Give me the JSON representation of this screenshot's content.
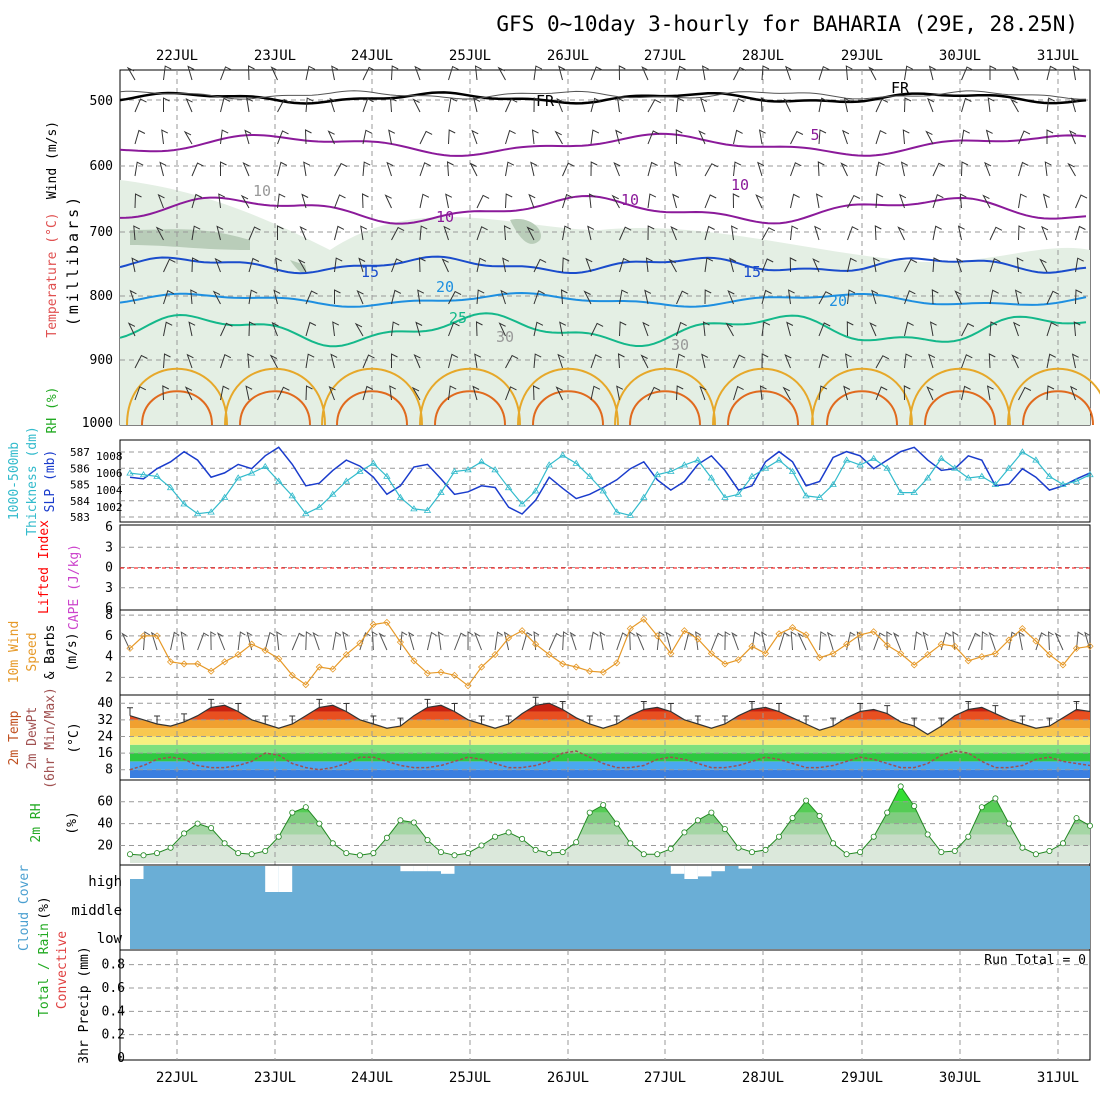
{
  "title": "GFS 0~10day 3-hourly for BAHARIA (29E, 28.25N)",
  "colors": {
    "grid": "#999999",
    "frame": "#000000",
    "slp": "#1a3ccc",
    "thickness": "#33bbcc",
    "lifted_index": "#ff0000",
    "cape": "#cc44cc",
    "wind": "#e69928",
    "rh_green": "#22aa22",
    "cloud_blue": "#6aaed6",
    "temp_c5": "#8b1a9a",
    "temp_c15": "#1a4ccc",
    "temp_c20": "#1e8fe0",
    "temp_c25": "#14b88a",
    "temp_warm1": "#e6a82a",
    "temp_warm2": "#e06a1e",
    "fr_line": "#000000"
  },
  "dates": [
    "22JUL",
    "23JUL",
    "24JUL",
    "25JUL",
    "26JUL",
    "27JUL",
    "28JUL",
    "29JUL",
    "30JUL",
    "31JUL"
  ],
  "panels": {
    "upper": {
      "ylabel_wind": "Wind (m/s)",
      "ylabel_temp": "Temperature (°C)",
      "ylabel_rh": "RH (%)",
      "ylabel_p": "(millibars)",
      "ticks": [
        "500",
        "600",
        "700",
        "800",
        "900",
        "1000"
      ],
      "contour_labels": [
        "5",
        "10",
        "10",
        "10",
        "15",
        "15",
        "20",
        "20",
        "25",
        "30",
        "30",
        "FR",
        "FR",
        "10"
      ]
    },
    "slp": {
      "ylabel_a": "1000-500mb",
      "ylabel_b": "Thickness (dm)",
      "ylabel_c": "SLP (mb)",
      "left_ticks": [
        "587",
        "586",
        "585",
        "584",
        "583"
      ],
      "right_ticks": [
        "1008",
        "1006",
        "1004",
        "1002"
      ]
    },
    "li": {
      "ylabel_a": "Lifted Index",
      "ylabel_b": "CAPE (J/kg)",
      "ticks": [
        "6",
        "3",
        "0",
        "3",
        "6"
      ]
    },
    "wind": {
      "ylabel_a": "10m Wind",
      "ylabel_b": "Speed",
      "ylabel_c": "& Barbs",
      "ylabel_d": "(m/s)",
      "ticks": [
        "8",
        "6",
        "4",
        "2"
      ]
    },
    "temp": {
      "ylabel_a": "2m Temp",
      "ylabel_b": "2m DewPt",
      "ylabel_c": "(6hr Min/Max)",
      "ylabel_d": "(°C)",
      "ticks": [
        "40",
        "32",
        "24",
        "16",
        "8"
      ]
    },
    "rh": {
      "ylabel_a": "2m RH",
      "ylabel_b": "(%)",
      "ticks": [
        "60",
        "40",
        "20"
      ]
    },
    "cloud": {
      "ylabel_a": "Cloud Cover",
      "ylabel_b": "(%)",
      "levels": [
        "high",
        "middle",
        "low"
      ]
    },
    "precip": {
      "ylabel_a": "Total / Rain",
      "ylabel_b": "Convective",
      "ylabel_c": "3hr Precip (mm)",
      "run_total": "Run Total = 0",
      "ticks": [
        "0.8",
        "0.6",
        "0.4",
        "0.2",
        "0"
      ]
    }
  },
  "chart_data": [
    {
      "type": "line",
      "title": "",
      "series": [
        {
          "name": "SLP (mb)",
          "values": [
            1005.5,
            1005.3,
            1006.5,
            1007.3,
            1008.5,
            1007.5,
            1005.5,
            1006,
            1007,
            1006.5,
            1008,
            1009,
            1007,
            1004.5,
            1004.8,
            1006.3,
            1007.5,
            1006.8,
            1005.5,
            1003.5,
            1004.5,
            1006.7,
            1007,
            1005.3,
            1003.5,
            1003.8,
            1004.5,
            1004.3,
            1002,
            1001.2,
            1002.8,
            1005.5,
            1004.2,
            1003,
            1003.5,
            1004.3,
            1005.2,
            1006.5,
            1007.3,
            1005.2,
            1004,
            1005,
            1007,
            1008,
            1006.3,
            1004,
            1004.5,
            1007.3,
            1008.5,
            1007.3,
            1004.5,
            1005,
            1007.8,
            1008.5,
            1008,
            1006.5,
            1007.5,
            1008.5,
            1009,
            1007.5,
            1006.3,
            1006.5,
            1008,
            1007.5,
            1004.5,
            1004.7,
            1006.5,
            1005.5,
            1004,
            1004.5,
            1005.3,
            1006
          ]
        },
        {
          "name": "1000-500mb Thickness (dm)",
          "values": [
            585.7,
            585.6,
            585.5,
            584.8,
            583.8,
            583.2,
            583.3,
            584.2,
            585.4,
            585.7,
            586.1,
            585.2,
            584.3,
            583.2,
            583.6,
            584.4,
            585.2,
            585.8,
            586.3,
            585.5,
            584.2,
            583.5,
            583.4,
            584.5,
            585.8,
            585.9,
            586.4,
            585.9,
            584.8,
            583.8,
            584.6,
            586.2,
            586.8,
            586.3,
            585.5,
            584.6,
            583.3,
            583.1,
            584.2,
            585.6,
            585.8,
            586.2,
            586.5,
            585.4,
            584.2,
            584.4,
            585.5,
            586,
            586.5,
            585.8,
            584.3,
            584.2,
            585,
            586.5,
            586.2,
            586.6,
            586,
            584.5,
            584.5,
            585.4,
            586.6,
            586,
            585.4,
            585.5,
            585,
            586,
            587,
            586.5,
            585.5,
            585,
            585.2,
            585.6
          ]
        }
      ]
    },
    {
      "type": "line",
      "title": "",
      "series": [
        {
          "name": "Lifted Index",
          "values": [
            0
          ]
        }
      ]
    },
    {
      "type": "line",
      "title": "",
      "series": [
        {
          "name": "10m Wind Speed (m/s)",
          "values": [
            4.8,
            6,
            6,
            3.5,
            3.3,
            3.3,
            2.6,
            3.5,
            4.2,
            5.2,
            4.6,
            3.8,
            2.2,
            1.3,
            3,
            2.8,
            4.2,
            5.3,
            7.1,
            7.3,
            5.4,
            3.6,
            2.4,
            2.5,
            2.2,
            1.2,
            3,
            4.2,
            5.8,
            6.5,
            5.2,
            4.2,
            3.3,
            3.0,
            2.6,
            2.5,
            3.4,
            6.7,
            7.6,
            6,
            4.3,
            6.5,
            5.7,
            4.3,
            3.3,
            3.7,
            5,
            4.3,
            6.2,
            6.8,
            6.1,
            3.9,
            4.3,
            5.2,
            6.1,
            6.4,
            5.1,
            4.3,
            3.2,
            4.2,
            5.2,
            5,
            3.6,
            4,
            4.3,
            5.6,
            6.7,
            5.5,
            4.2,
            3.2,
            4.8,
            5
          ]
        }
      ]
    },
    {
      "type": "area",
      "title": "",
      "series": [
        {
          "name": "2m Temp (°C)",
          "values": [
            34,
            32,
            30,
            29,
            31,
            34,
            38,
            39,
            36,
            32,
            30,
            28,
            30,
            34,
            38,
            39,
            36,
            32,
            30,
            28,
            29,
            34,
            38,
            39,
            36,
            32,
            30,
            28,
            30,
            35,
            39,
            40,
            37,
            33,
            30,
            28,
            30,
            34,
            37,
            38,
            36,
            32,
            30,
            28,
            30,
            34,
            37,
            38,
            36,
            33,
            30,
            27,
            29,
            33,
            36,
            37,
            35,
            31,
            29,
            25,
            29,
            34,
            37,
            38,
            35,
            32,
            30,
            28,
            29,
            33,
            37,
            36
          ]
        },
        {
          "name": "2m DewPt (°C)",
          "values": [
            8,
            10,
            13,
            14,
            13,
            10,
            9,
            9,
            10,
            12,
            16,
            15,
            11,
            9,
            8,
            9,
            11,
            14,
            14,
            12,
            10,
            9,
            9,
            10,
            12,
            14,
            13,
            11,
            9,
            9,
            10,
            12,
            16,
            17,
            14,
            11,
            9,
            9,
            10,
            13,
            14,
            13,
            11,
            9,
            9,
            10,
            12,
            14,
            13,
            11,
            9,
            9,
            10,
            12,
            14,
            13,
            11,
            9,
            9,
            11,
            15,
            17,
            16,
            12,
            9,
            9,
            10,
            13,
            14,
            12,
            11,
            10
          ]
        }
      ]
    },
    {
      "type": "area",
      "title": "",
      "series": [
        {
          "name": "2m RH (%)",
          "values": [
            12,
            11,
            13,
            18,
            31,
            40,
            36,
            22,
            13,
            12,
            15,
            28,
            50,
            55,
            40,
            22,
            13,
            11,
            13,
            27,
            43,
            41,
            25,
            14,
            11,
            13,
            20,
            28,
            32,
            26,
            16,
            13,
            14,
            23,
            50,
            57,
            40,
            22,
            12,
            12,
            17,
            32,
            43,
            50,
            35,
            18,
            14,
            16,
            28,
            45,
            61,
            47,
            22,
            12,
            14,
            28,
            50,
            74,
            56,
            30,
            14,
            15,
            28,
            55,
            63,
            40,
            18,
            12,
            15,
            22,
            45,
            38
          ]
        }
      ]
    },
    {
      "type": "bar",
      "title": "",
      "series": [
        {
          "name": "Cloud Cover high (%)",
          "values": [
            0.5,
            0,
            0,
            0,
            0,
            0,
            0,
            0,
            0,
            0,
            1,
            1,
            0,
            0,
            0,
            0,
            0,
            0,
            0,
            0,
            0.2,
            0.2,
            0.2,
            0.3,
            0,
            0,
            0,
            0,
            0,
            0,
            0,
            0,
            0,
            0,
            0,
            0,
            0,
            0,
            0,
            0,
            0.3,
            0.5,
            0.4,
            0.2,
            0,
            0.1,
            0,
            0,
            0,
            0,
            0,
            0,
            0,
            0,
            0,
            0,
            0,
            0,
            0,
            0,
            0,
            0,
            0,
            0,
            0,
            0,
            0,
            0,
            0,
            0,
            0,
            0
          ]
        }
      ]
    },
    {
      "type": "bar",
      "title": "",
      "series": [
        {
          "name": "3hr Precip (mm)",
          "values": [
            0
          ]
        }
      ],
      "ylim": [
        0,
        0.9
      ]
    }
  ]
}
